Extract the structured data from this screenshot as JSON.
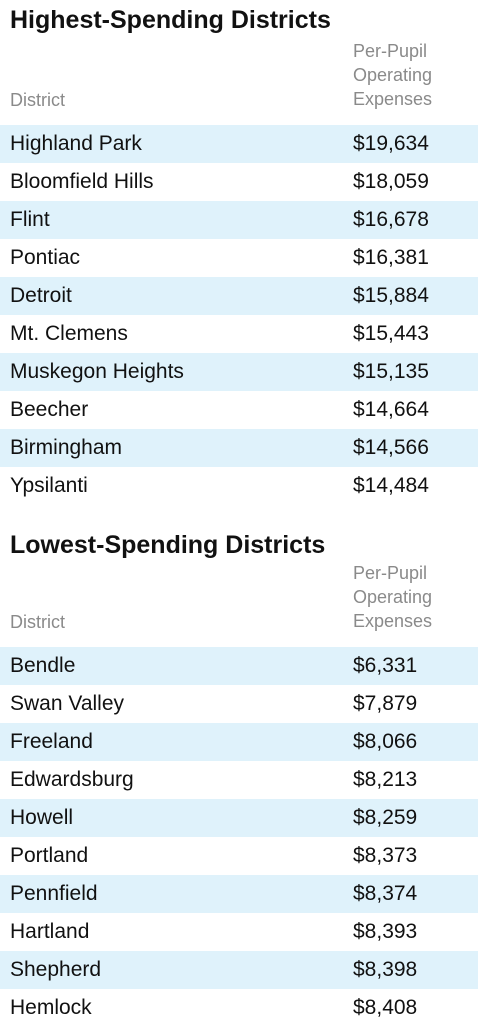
{
  "chart_data": [
    {
      "type": "table",
      "title": "Highest-Spending Districts",
      "columns": [
        "District",
        "Per-Pupil Operating Expenses"
      ],
      "column_header_lines": [
        "Per-Pupil",
        "Operating",
        "Expenses"
      ],
      "rows": [
        {
          "district": "Highland Park",
          "value": "$19,634"
        },
        {
          "district": "Bloomfield Hills",
          "value": "$18,059"
        },
        {
          "district": "Flint",
          "value": "$16,678"
        },
        {
          "district": "Pontiac",
          "value": "$16,381"
        },
        {
          "district": "Detroit",
          "value": "$15,884"
        },
        {
          "district": "Mt. Clemens",
          "value": "$15,443"
        },
        {
          "district": "Muskegon Heights",
          "value": "$15,135"
        },
        {
          "district": "Beecher",
          "value": "$14,664"
        },
        {
          "district": "Birmingham",
          "value": "$14,566"
        },
        {
          "district": "Ypsilanti",
          "value": "$14,484"
        }
      ]
    },
    {
      "type": "table",
      "title": "Lowest-Spending Districts",
      "columns": [
        "District",
        "Per-Pupil Operating Expenses"
      ],
      "column_header_lines": [
        "Per-Pupil",
        "Operating",
        "Expenses"
      ],
      "rows": [
        {
          "district": "Bendle",
          "value": "$6,331"
        },
        {
          "district": "Swan Valley",
          "value": "$7,879"
        },
        {
          "district": "Freeland",
          "value": "$8,066"
        },
        {
          "district": "Edwardsburg",
          "value": "$8,213"
        },
        {
          "district": "Howell",
          "value": "$8,259"
        },
        {
          "district": "Portland",
          "value": "$8,373"
        },
        {
          "district": "Pennfield",
          "value": "$8,374"
        },
        {
          "district": "Hartland",
          "value": "$8,393"
        },
        {
          "district": "Shepherd",
          "value": "$8,398"
        },
        {
          "district": "Hemlock",
          "value": "$8,408"
        }
      ]
    }
  ],
  "colors": {
    "row_shade": "#dff2fb",
    "header_text": "#8a8a8a",
    "body_text": "#111111"
  }
}
